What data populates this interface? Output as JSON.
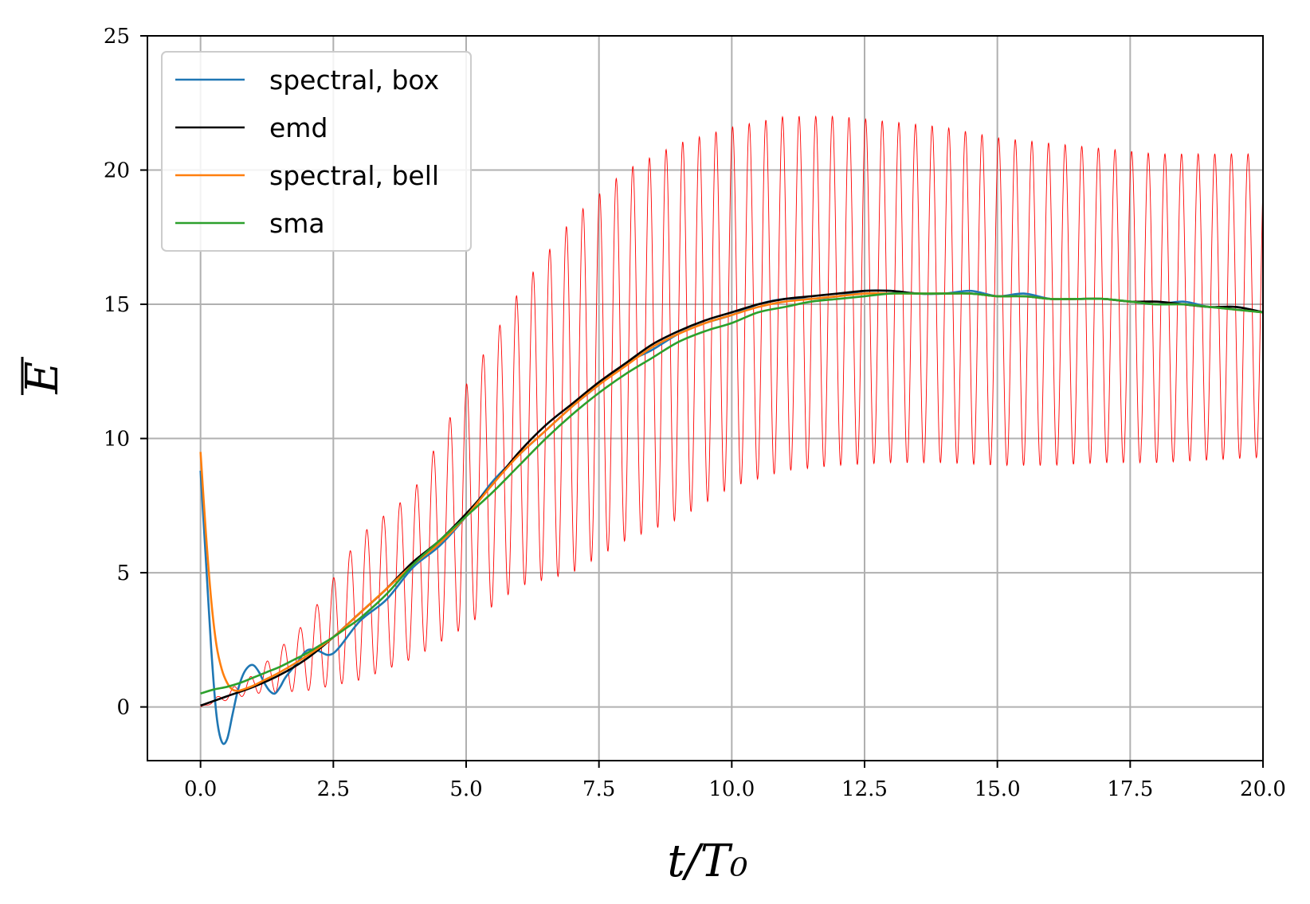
{
  "chart_data": {
    "type": "line",
    "xlabel": "t/T₀",
    "ylabel": "E",
    "xlim": [
      -1,
      20
    ],
    "ylim": [
      -2,
      25
    ],
    "x_ticks": [
      0.0,
      2.5,
      5.0,
      7.5,
      10.0,
      12.5,
      15.0,
      17.5,
      20.0
    ],
    "x_tick_labels": [
      "0.0",
      "2.5",
      "5.0",
      "7.5",
      "10.0",
      "12.5",
      "15.0",
      "17.5",
      "20.0"
    ],
    "y_ticks": [
      0,
      5,
      10,
      15,
      20,
      25
    ],
    "y_tick_labels": [
      "0",
      "5",
      "10",
      "15",
      "20",
      "25"
    ],
    "grid": true,
    "legend_position": "top-left",
    "colors": {
      "raw": "#ff0000",
      "spectral_box": "#1f77b4",
      "emd": "#000000",
      "spectral_bell": "#ff7f0e",
      "sma": "#2ca02c"
    },
    "raw_signal": {
      "period": 0.313,
      "envelope_t": [
        0,
        1,
        2,
        3,
        4,
        5,
        6,
        7,
        8,
        9,
        10,
        11,
        12,
        13,
        14,
        15,
        16,
        17,
        18,
        19,
        20
      ],
      "upper": [
        0,
        1.2,
        3.2,
        6.4,
        8.0,
        12.0,
        15.5,
        18.2,
        20.0,
        21.0,
        21.6,
        22.0,
        22.0,
        21.8,
        21.6,
        21.2,
        21.0,
        20.8,
        20.6,
        20.6,
        20.6
      ],
      "lower": [
        0,
        0.5,
        0.6,
        1.0,
        1.8,
        3.0,
        4.5,
        5.0,
        6.2,
        7.0,
        8.2,
        8.8,
        9.0,
        9.1,
        9.1,
        9.0,
        9.0,
        9.1,
        9.1,
        9.2,
        9.3
      ]
    },
    "series": [
      {
        "name": "spectral, box",
        "x": [
          0,
          0.1,
          0.2,
          0.3,
          0.4,
          0.5,
          0.6,
          0.7,
          0.8,
          0.9,
          1.0,
          1.1,
          1.2,
          1.3,
          1.4,
          1.5,
          1.6,
          1.8,
          2.0,
          2.2,
          2.5,
          3.0,
          3.5,
          4.0,
          4.5,
          5.0,
          5.5,
          6.0,
          6.5,
          7.0,
          7.5,
          8.0,
          8.5,
          9.0,
          9.5,
          10.0,
          10.5,
          11.0,
          11.5,
          12.0,
          12.5,
          13.0,
          13.5,
          14.0,
          14.5,
          15.0,
          15.5,
          16.0,
          16.5,
          17.0,
          17.5,
          18.0,
          18.5,
          19.0,
          19.5,
          20.0
        ],
        "y": [
          8.8,
          5.5,
          2.2,
          -0.3,
          -1.3,
          -1.2,
          -0.3,
          0.6,
          1.2,
          1.5,
          1.55,
          1.3,
          0.9,
          0.6,
          0.5,
          0.75,
          1.1,
          1.6,
          2.1,
          2.1,
          2.0,
          3.2,
          4.0,
          5.2,
          6.0,
          7.1,
          8.4,
          9.4,
          10.3,
          11.2,
          12.0,
          12.8,
          13.3,
          13.9,
          14.3,
          14.6,
          15.0,
          15.2,
          15.2,
          15.3,
          15.5,
          15.5,
          15.4,
          15.4,
          15.5,
          15.3,
          15.4,
          15.2,
          15.2,
          15.2,
          15.1,
          15.0,
          15.1,
          14.9,
          14.9,
          14.7
        ]
      },
      {
        "name": "emd",
        "x": [
          0,
          0.5,
          1.0,
          1.5,
          2.0,
          2.5,
          3.0,
          3.5,
          4.0,
          4.5,
          5.0,
          5.5,
          6.0,
          6.5,
          7.0,
          7.5,
          8.0,
          8.5,
          9.0,
          9.5,
          10.0,
          10.5,
          11.0,
          11.5,
          12.0,
          12.5,
          13.0,
          13.5,
          14.0,
          14.5,
          15.0,
          15.5,
          16.0,
          16.5,
          17.0,
          17.5,
          18.0,
          18.5,
          19.0,
          19.5,
          20.0
        ],
        "y": [
          0.05,
          0.4,
          0.75,
          1.2,
          1.8,
          2.6,
          3.5,
          4.4,
          5.4,
          6.2,
          7.2,
          8.3,
          9.5,
          10.5,
          11.3,
          12.1,
          12.8,
          13.5,
          14.0,
          14.4,
          14.7,
          15.0,
          15.2,
          15.3,
          15.4,
          15.5,
          15.5,
          15.4,
          15.4,
          15.4,
          15.3,
          15.3,
          15.2,
          15.2,
          15.2,
          15.1,
          15.1,
          15.0,
          14.9,
          14.9,
          14.7
        ]
      },
      {
        "name": "spectral, bell",
        "x": [
          0,
          0.1,
          0.2,
          0.3,
          0.4,
          0.5,
          0.6,
          0.7,
          0.8,
          1.0,
          1.2,
          1.5,
          2.0,
          2.5,
          3.0,
          3.5,
          4.0,
          4.5,
          5.0,
          5.5,
          6.0,
          6.5,
          7.0,
          7.5,
          8.0,
          8.5,
          9.0,
          9.5,
          10.0,
          10.5,
          11.0,
          11.5,
          12.0,
          12.5,
          13.0,
          13.5,
          14.0,
          14.5,
          15.0,
          15.5,
          16.0,
          16.5,
          17.0,
          17.5,
          18.0,
          18.5,
          19.0,
          19.5,
          20.0
        ],
        "y": [
          9.5,
          6.5,
          4.0,
          2.3,
          1.4,
          0.9,
          0.65,
          0.6,
          0.65,
          0.8,
          1.0,
          1.3,
          1.9,
          2.6,
          3.5,
          4.4,
          5.3,
          6.1,
          7.1,
          8.3,
          9.4,
          10.3,
          11.2,
          12.0,
          12.7,
          13.4,
          13.9,
          14.3,
          14.6,
          14.9,
          15.1,
          15.2,
          15.3,
          15.4,
          15.4,
          15.4,
          15.4,
          15.4,
          15.3,
          15.3,
          15.2,
          15.2,
          15.2,
          15.1,
          15.0,
          15.0,
          14.9,
          14.8,
          14.7
        ]
      },
      {
        "name": "sma",
        "x": [
          0,
          0.25,
          0.5,
          0.75,
          1.0,
          1.25,
          1.5,
          1.75,
          2.0,
          2.25,
          2.5,
          2.75,
          3.0,
          3.5,
          4.0,
          4.5,
          5.0,
          5.5,
          6.0,
          6.5,
          7.0,
          7.5,
          8.0,
          8.5,
          9.0,
          9.5,
          10.0,
          10.5,
          11.0,
          11.5,
          12.0,
          12.5,
          13.0,
          13.5,
          14.0,
          14.5,
          15.0,
          15.5,
          16.0,
          16.5,
          17.0,
          17.5,
          18.0,
          18.5,
          19.0,
          19.5,
          20.0
        ],
        "y": [
          0.5,
          0.65,
          0.75,
          0.9,
          1.1,
          1.3,
          1.5,
          1.75,
          2.0,
          2.3,
          2.6,
          2.95,
          3.3,
          4.2,
          5.3,
          6.2,
          7.1,
          8.0,
          9.0,
          10.0,
          10.9,
          11.7,
          12.4,
          13.0,
          13.6,
          14.0,
          14.3,
          14.7,
          14.9,
          15.1,
          15.2,
          15.3,
          15.4,
          15.4,
          15.4,
          15.4,
          15.3,
          15.3,
          15.2,
          15.2,
          15.2,
          15.1,
          15.0,
          15.0,
          14.9,
          14.8,
          14.7
        ]
      }
    ]
  }
}
